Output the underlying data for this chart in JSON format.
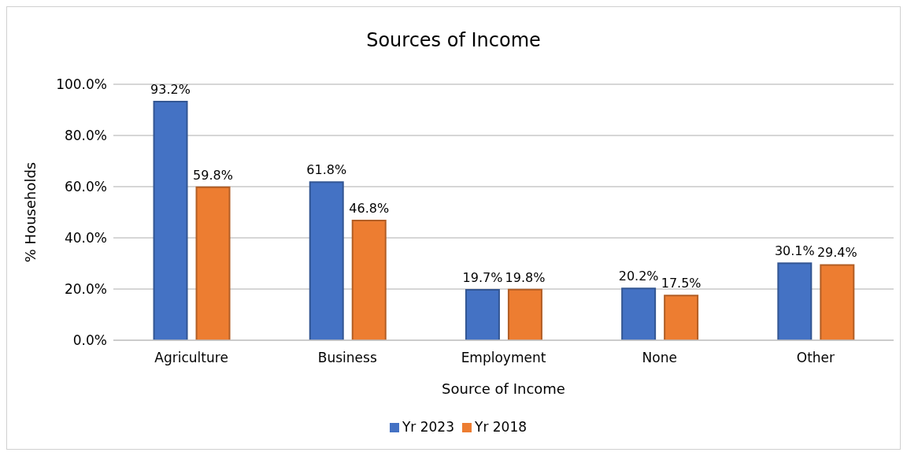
{
  "chart_data": {
    "type": "bar",
    "title": "Sources of Income",
    "xlabel": "Source of Income",
    "ylabel": "% Households",
    "categories": [
      "Agriculture",
      "Business",
      "Employment",
      "None",
      "Other"
    ],
    "series": [
      {
        "name": "Yr 2023",
        "color": "#4472c4",
        "values": [
          93.2,
          61.8,
          19.7,
          20.2,
          30.1
        ],
        "value_labels": [
          "93.2%",
          "61.8%",
          "19.7%",
          "20.2%",
          "30.1%"
        ]
      },
      {
        "name": "Yr 2018",
        "color": "#ed7d31",
        "values": [
          59.8,
          46.8,
          19.8,
          17.5,
          29.4
        ],
        "value_labels": [
          "59.8%",
          "46.8%",
          "19.8%",
          "17.5%",
          "29.4%"
        ]
      }
    ],
    "ylim": [
      0,
      100
    ],
    "yticks": [
      {
        "value": 0,
        "label": "0.0%"
      },
      {
        "value": 20,
        "label": "20.0%"
      },
      {
        "value": 40,
        "label": "40.0%"
      },
      {
        "value": 60,
        "label": "60.0%"
      },
      {
        "value": 80,
        "label": "80.0%"
      },
      {
        "value": 100,
        "label": "100.0%"
      }
    ],
    "grid": "y",
    "legend": "bottom"
  }
}
